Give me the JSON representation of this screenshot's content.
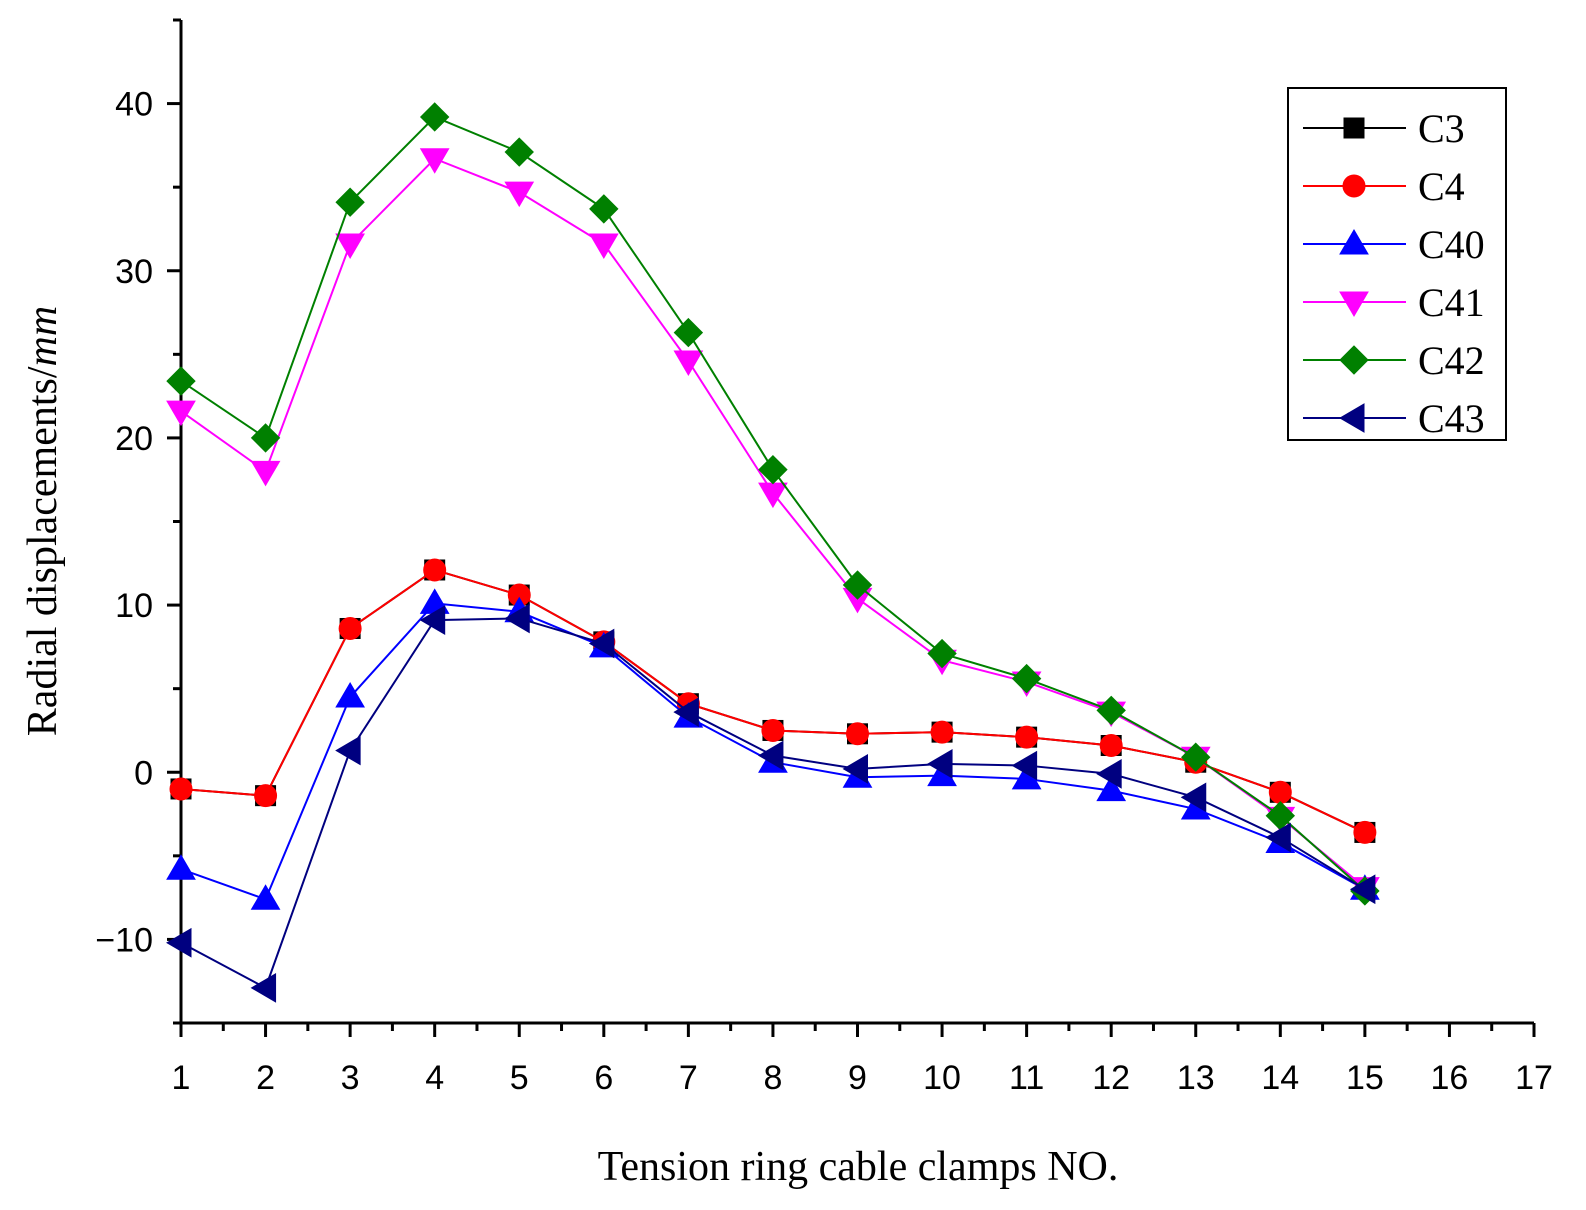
{
  "chart_data": {
    "type": "line",
    "title": "",
    "xlabel": "Tension ring cable clamps NO.",
    "ylabel": "Radial displacements/",
    "ylabel_unit": "mm",
    "xlim": [
      1,
      17
    ],
    "ylim": [
      -15,
      45
    ],
    "x_ticks": [
      1,
      2,
      3,
      4,
      5,
      6,
      7,
      8,
      9,
      10,
      11,
      12,
      13,
      14,
      15,
      16,
      17
    ],
    "y_ticks": [
      -10,
      0,
      10,
      20,
      30,
      40
    ],
    "y_tick_labels": [
      "−10",
      "0",
      "10",
      "20",
      "30",
      "40"
    ],
    "grid": false,
    "legend_position": "top-right",
    "x": [
      1,
      2,
      3,
      4,
      5,
      6,
      7,
      8,
      9,
      10,
      11,
      12,
      13,
      14,
      15
    ],
    "series": [
      {
        "name": "C3",
        "color": "#000000",
        "marker": "square",
        "values": [
          -1.0,
          -1.4,
          8.6,
          12.1,
          10.6,
          7.8,
          4.1,
          2.5,
          2.3,
          2.4,
          2.1,
          1.6,
          0.6,
          -1.2,
          -3.6
        ]
      },
      {
        "name": "C4",
        "color": "#ff0000",
        "marker": "circle",
        "values": [
          -1.0,
          -1.4,
          8.6,
          12.1,
          10.6,
          7.8,
          4.1,
          2.5,
          2.3,
          2.4,
          2.1,
          1.6,
          0.6,
          -1.2,
          -3.6
        ]
      },
      {
        "name": "C40",
        "color": "#0000ff",
        "marker": "triangle-up",
        "values": [
          -5.8,
          -7.6,
          4.5,
          10.1,
          9.6,
          7.5,
          3.3,
          0.6,
          -0.3,
          -0.2,
          -0.4,
          -1.1,
          -2.2,
          -4.2,
          -7.0
        ]
      },
      {
        "name": "C41",
        "color": "#ff00ff",
        "marker": "triangle-down",
        "values": [
          21.6,
          18.0,
          31.6,
          36.7,
          34.7,
          31.6,
          24.6,
          16.7,
          10.4,
          6.7,
          5.4,
          3.6,
          0.9,
          -2.7,
          -6.9
        ]
      },
      {
        "name": "C42",
        "color": "#008000",
        "marker": "diamond",
        "values": [
          23.4,
          20.0,
          34.1,
          39.2,
          37.1,
          33.7,
          26.3,
          18.1,
          11.2,
          7.1,
          5.6,
          3.7,
          0.9,
          -2.6,
          -7.1
        ]
      },
      {
        "name": "C43",
        "color": "#000080",
        "marker": "triangle-left",
        "values": [
          -10.2,
          -12.9,
          1.3,
          9.1,
          9.2,
          7.7,
          3.6,
          1.0,
          0.2,
          0.5,
          0.4,
          -0.1,
          -1.5,
          -3.9,
          -7.0
        ]
      }
    ]
  }
}
